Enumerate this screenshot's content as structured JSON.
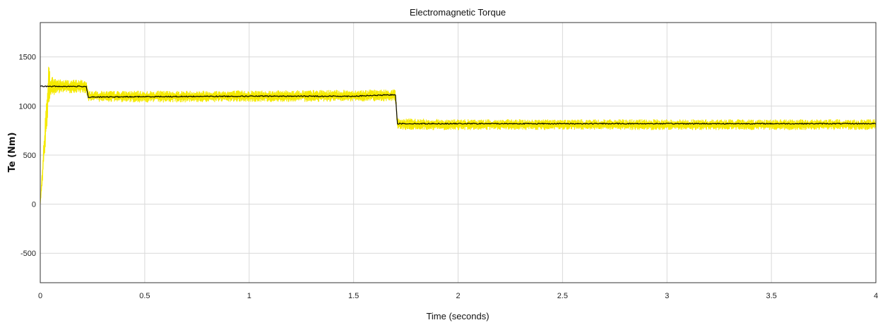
{
  "chart_data": {
    "type": "line",
    "title": "Electromagnetic Torque",
    "xlabel": "Time (seconds)",
    "ylabel": "Te (Nm)",
    "xlim": [
      0,
      4
    ],
    "ylim": [
      -800,
      1850
    ],
    "xticks": [
      0,
      0.5,
      1,
      1.5,
      2,
      2.5,
      3,
      3.5,
      4
    ],
    "xtick_labels": [
      "0",
      "0.5",
      "1",
      "1.5",
      "2",
      "2.5",
      "3",
      "3.5",
      "4"
    ],
    "yticks": [
      -500,
      0,
      500,
      1000,
      1500
    ],
    "ytick_labels": [
      "-500",
      "0",
      "500",
      "1000",
      "1500"
    ],
    "grid": true,
    "legend": "none",
    "series": [
      {
        "color": "#f5ea00",
        "style": "noisy band",
        "x": [
          0,
          0.02,
          0.04,
          0.05,
          0.1,
          0.22,
          0.23,
          0.5,
          1.0,
          1.5,
          1.7,
          1.71,
          2.0,
          2.5,
          3.0,
          3.5,
          4.0
        ],
        "y": [
          0,
          600,
          1220,
          1200,
          1200,
          1200,
          1100,
          1095,
          1100,
          1105,
          1110,
          815,
          810,
          810,
          810,
          810,
          810
        ],
        "spread": [
          0,
          150,
          220,
          110,
          70,
          70,
          55,
          60,
          60,
          60,
          60,
          60,
          55,
          55,
          55,
          55,
          55
        ]
      },
      {
        "color": "#000000",
        "style": "line",
        "x": [
          0,
          0.22,
          0.23,
          0.5,
          1.0,
          1.5,
          1.7,
          1.71,
          2.0,
          2.5,
          3.0,
          3.5,
          4.0
        ],
        "y": [
          1200,
          1200,
          1090,
          1095,
          1100,
          1100,
          1115,
          820,
          820,
          820,
          820,
          820,
          820
        ]
      }
    ]
  }
}
